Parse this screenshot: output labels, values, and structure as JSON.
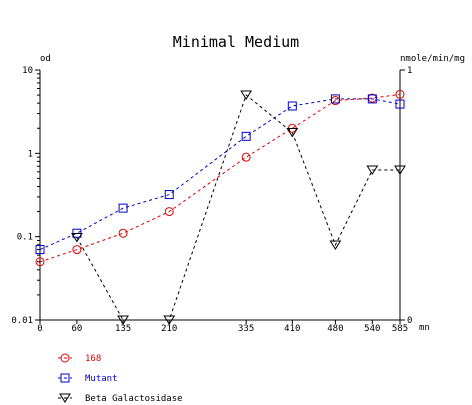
{
  "chart_data": {
    "type": "line",
    "title": "Minimal Medium",
    "left_axis": {
      "unit_label": "od",
      "scale": "log",
      "range": [
        0.01,
        10
      ],
      "tick_labels": [
        "10",
        "1",
        "0.1",
        "0.01"
      ],
      "tick_values": [
        10,
        1,
        0.1,
        0.01
      ]
    },
    "right_axis": {
      "unit_label": "nmole/min/mg",
      "scale": "linear",
      "range": [
        0,
        1
      ],
      "tick_labels": [
        "1",
        "0"
      ],
      "tick_values": [
        1,
        0
      ]
    },
    "x_axis": {
      "unit_label": "mn",
      "range": [
        0,
        585
      ],
      "tick_labels": [
        "0",
        "60",
        "135",
        "210",
        "335",
        "410",
        "480",
        "540",
        "585"
      ],
      "tick_values": [
        0,
        60,
        135,
        210,
        335,
        410,
        480,
        540,
        585
      ]
    },
    "grid": false,
    "legend_position": "bottom-left",
    "series": [
      {
        "name": "168",
        "axis": "left",
        "color": "#dd0000",
        "marker": "circle",
        "x": [
          0,
          60,
          135,
          210,
          335,
          410,
          480,
          540,
          585
        ],
        "y": [
          0.05,
          0.07,
          0.11,
          0.2,
          0.9,
          2.0,
          4.3,
          4.6,
          5.1
        ]
      },
      {
        "name": "Mutant",
        "axis": "left",
        "color": "#0000cc",
        "marker": "square",
        "x": [
          0,
          60,
          135,
          210,
          335,
          410,
          480,
          540,
          585
        ],
        "y": [
          0.07,
          0.11,
          0.22,
          0.32,
          1.6,
          3.7,
          4.5,
          4.5,
          3.9
        ]
      },
      {
        "name": "Beta Galactosidase",
        "axis": "right",
        "color": "#000000",
        "marker": "triangle-down",
        "x": [
          60,
          135,
          210,
          335,
          410,
          480,
          540,
          585
        ],
        "y": [
          0.33,
          0.0,
          0.0,
          0.9,
          0.75,
          0.3,
          0.6,
          0.6
        ]
      }
    ]
  }
}
